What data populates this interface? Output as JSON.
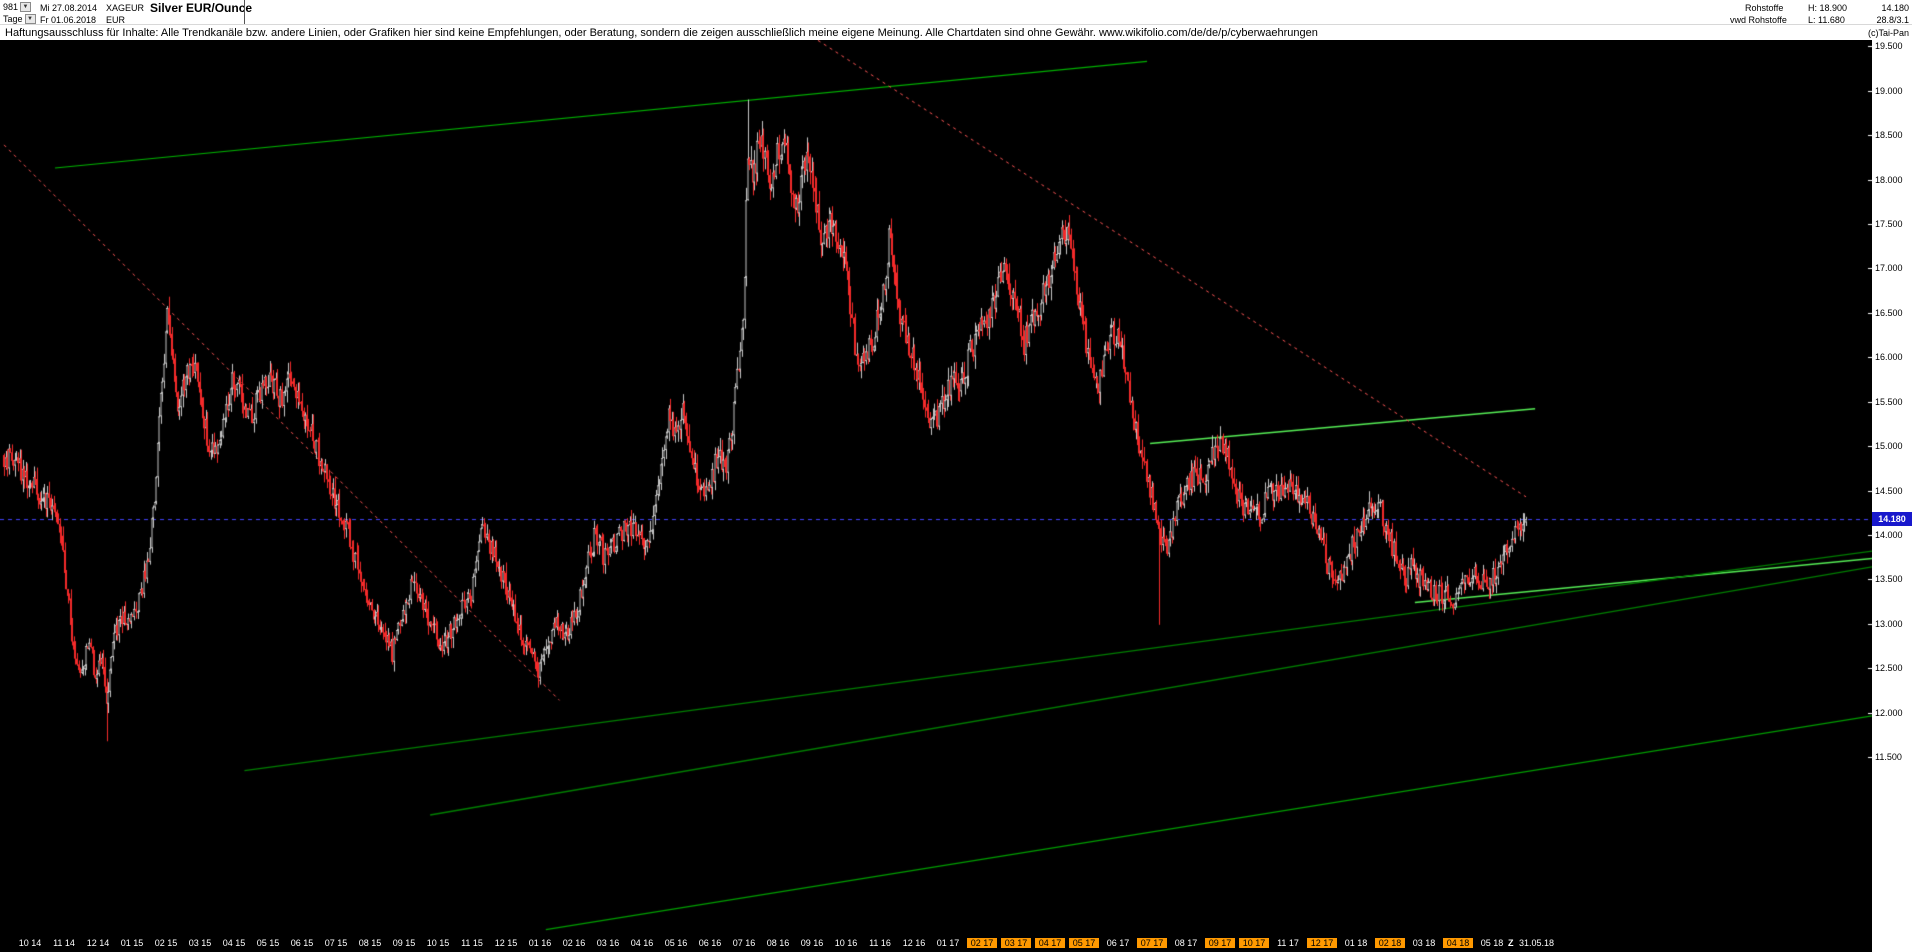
{
  "header": {
    "bar_count": "981",
    "anchor_date": "Mi 27.08.2014",
    "symbol": "XAGEUR",
    "title": "Silver EUR/Ounce",
    "timeframe": "Tage",
    "end_date": "Fr 01.06.2018",
    "currency": "EUR",
    "category": "Rohstoffe",
    "feed": "vwd Rohstoffe",
    "high_label": "H: 18.900",
    "low_label": "L: 11.680",
    "last_price": "14.180",
    "range_info": "28.8/3.1",
    "copyright": "(c)Tai-Pan"
  },
  "disclaimer": "Haftungsausschluss für Inhalte: Alle Trendkanäle bzw. andere Linien, oder Grafiken hier sind keine Empfehlungen, oder Beratung, sondern die zeigen ausschließlich meine eigene Meinung. Alle Chartdaten sind ohne Gewähr.  www.wikifolio.com/de/de/p/cyberwaehrungen",
  "chart_data": {
    "type": "candlestick",
    "title": "Silver EUR/Ounce",
    "instrument": "XAGEUR",
    "timeframe": "Tage",
    "period_start": "27.08.2014",
    "period_end": "01.06.2018",
    "bars": 981,
    "high": 18.9,
    "low": 11.68,
    "last": 14.18,
    "ylim": [
      9.5,
      19.57
    ],
    "yticks": [
      19.5,
      19.0,
      18.5,
      18.0,
      17.5,
      17.0,
      16.5,
      16.0,
      15.5,
      15.0,
      14.5,
      14.0,
      13.5,
      13.0,
      12.5,
      12.0,
      11.5
    ],
    "ytick_labels": [
      "19.500",
      "19.000",
      "18.500",
      "18.000",
      "17.500",
      "17.000",
      "16.500",
      "16.000",
      "15.500",
      "15.000",
      "14.500",
      "14.000",
      "13.500",
      "13.000",
      "12.500",
      "12.000",
      "11.500"
    ],
    "x_labels": [
      {
        "t": "10 14",
        "h": false
      },
      {
        "t": "11 14",
        "h": false
      },
      {
        "t": "12 14",
        "h": false
      },
      {
        "t": "01 15",
        "h": false
      },
      {
        "t": "02 15",
        "h": false
      },
      {
        "t": "03 15",
        "h": false
      },
      {
        "t": "04 15",
        "h": false
      },
      {
        "t": "05 15",
        "h": false
      },
      {
        "t": "06 15",
        "h": false
      },
      {
        "t": "07 15",
        "h": false
      },
      {
        "t": "08 15",
        "h": false
      },
      {
        "t": "09 15",
        "h": false
      },
      {
        "t": "10 15",
        "h": false
      },
      {
        "t": "11 15",
        "h": false
      },
      {
        "t": "12 15",
        "h": false
      },
      {
        "t": "01 16",
        "h": false
      },
      {
        "t": "02 16",
        "h": false
      },
      {
        "t": "03 16",
        "h": false
      },
      {
        "t": "04 16",
        "h": false
      },
      {
        "t": "05 16",
        "h": false
      },
      {
        "t": "06 16",
        "h": false
      },
      {
        "t": "07 16",
        "h": false
      },
      {
        "t": "08 16",
        "h": false
      },
      {
        "t": "09 16",
        "h": false
      },
      {
        "t": "10 16",
        "h": false
      },
      {
        "t": "11 16",
        "h": false
      },
      {
        "t": "12 16",
        "h": false
      },
      {
        "t": "01 17",
        "h": false
      },
      {
        "t": "02 17",
        "h": true
      },
      {
        "t": "03 17",
        "h": true
      },
      {
        "t": "04 17",
        "h": true
      },
      {
        "t": "05 17",
        "h": true
      },
      {
        "t": "06 17",
        "h": false
      },
      {
        "t": "07 17",
        "h": true
      },
      {
        "t": "08 17",
        "h": false
      },
      {
        "t": "09 17",
        "h": true
      },
      {
        "t": "10 17",
        "h": true
      },
      {
        "t": "11 17",
        "h": false
      },
      {
        "t": "12 17",
        "h": true
      },
      {
        "t": "01 18",
        "h": false
      },
      {
        "t": "02 18",
        "h": true
      },
      {
        "t": "03 18",
        "h": false
      },
      {
        "t": "04 18",
        "h": true
      },
      {
        "t": "05 18",
        "h": false
      }
    ],
    "end_marker": "Z",
    "end_date_label": "31.05.18",
    "last_price_line": {
      "price": 14.18,
      "color": "#4444ff",
      "label": "14.180",
      "bg": "#1818cc"
    },
    "trendlines": [
      {
        "t1": 0.0335,
        "p1": 18.13,
        "t2": 0.751,
        "p2": 19.33,
        "color": "#00b300",
        "dash": false,
        "w": 1.2
      },
      {
        "t1": 0.753,
        "p1": 15.03,
        "t2": 1.006,
        "p2": 15.42,
        "color": "#55ee55",
        "dash": false,
        "w": 1.5
      },
      {
        "t1": 0.927,
        "p1": 13.24,
        "t2": 1.254,
        "p2": 13.78,
        "color": "#55ee55",
        "dash": false,
        "w": 1.5
      },
      {
        "t1": 0.158,
        "p1": 11.35,
        "t2": 1.254,
        "p2": 13.88,
        "color": "#008000",
        "dash": false,
        "w": 1.3
      },
      {
        "t1": 0.28,
        "p1": 10.85,
        "t2": 1.254,
        "p2": 13.72,
        "color": "#008000",
        "dash": false,
        "w": 1.3
      },
      {
        "t1": 0.356,
        "p1": 9.56,
        "t2": 1.254,
        "p2": 12.04,
        "color": "#00a000",
        "dash": false,
        "w": 1.3
      },
      {
        "t1": 0.0,
        "p1": 18.39,
        "t2": 0.365,
        "p2": 12.14,
        "color": "#ff5555",
        "dash": true,
        "w": 1
      },
      {
        "t1": 0.5,
        "p1": 19.95,
        "t2": 1.0,
        "p2": 14.43,
        "color": "#ff5555",
        "dash": true,
        "w": 1
      }
    ],
    "spikes": [
      {
        "t": 0.0677,
        "low": 11.68
      },
      {
        "t": 0.4888,
        "high": 18.9
      },
      {
        "t": 0.7595,
        "low": 12.99
      }
    ],
    "keypoints": [
      [
        0.0,
        14.9
      ],
      [
        0.0105,
        14.75
      ],
      [
        0.0237,
        14.45
      ],
      [
        0.0335,
        14.3
      ],
      [
        0.0381,
        13.9
      ],
      [
        0.0434,
        13.1
      ],
      [
        0.0486,
        12.35
      ],
      [
        0.0552,
        12.75
      ],
      [
        0.0604,
        12.45
      ],
      [
        0.065,
        12.55
      ],
      [
        0.0677,
        12.05
      ],
      [
        0.071,
        12.75
      ],
      [
        0.0762,
        13.1
      ],
      [
        0.0828,
        12.95
      ],
      [
        0.0894,
        13.3
      ],
      [
        0.0946,
        13.7
      ],
      [
        0.0992,
        14.5
      ],
      [
        0.1032,
        15.6
      ],
      [
        0.1071,
        16.5
      ],
      [
        0.1104,
        16.1
      ],
      [
        0.1143,
        15.45
      ],
      [
        0.1196,
        15.75
      ],
      [
        0.1248,
        15.9
      ],
      [
        0.1301,
        15.45
      ],
      [
        0.1347,
        15.05
      ],
      [
        0.1387,
        14.95
      ],
      [
        0.1446,
        15.35
      ],
      [
        0.1505,
        15.8
      ],
      [
        0.1564,
        15.5
      ],
      [
        0.163,
        15.35
      ],
      [
        0.1695,
        15.7
      ],
      [
        0.1748,
        15.8
      ],
      [
        0.1814,
        15.5
      ],
      [
        0.1879,
        15.8
      ],
      [
        0.1932,
        15.6
      ],
      [
        0.1985,
        15.35
      ],
      [
        0.205,
        15.0
      ],
      [
        0.2116,
        14.65
      ],
      [
        0.2182,
        14.35
      ],
      [
        0.2247,
        14.15
      ],
      [
        0.2313,
        13.7
      ],
      [
        0.2366,
        13.35
      ],
      [
        0.2418,
        13.15
      ],
      [
        0.2484,
        12.9
      ],
      [
        0.255,
        12.68
      ],
      [
        0.2615,
        13.1
      ],
      [
        0.2681,
        13.45
      ],
      [
        0.2747,
        13.2
      ],
      [
        0.2813,
        13.0
      ],
      [
        0.2878,
        12.72
      ],
      [
        0.2944,
        12.95
      ],
      [
        0.3009,
        13.15
      ],
      [
        0.3075,
        13.35
      ],
      [
        0.3128,
        14.1
      ],
      [
        0.3193,
        13.9
      ],
      [
        0.3259,
        13.6
      ],
      [
        0.3325,
        13.25
      ],
      [
        0.3391,
        12.9
      ],
      [
        0.3456,
        12.7
      ],
      [
        0.3509,
        12.48
      ],
      [
        0.3574,
        12.85
      ],
      [
        0.364,
        13.0
      ],
      [
        0.3706,
        12.9
      ],
      [
        0.3771,
        13.2
      ],
      [
        0.3837,
        13.75
      ],
      [
        0.389,
        14.05
      ],
      [
        0.3942,
        13.75
      ],
      [
        0.4008,
        13.9
      ],
      [
        0.4074,
        14.05
      ],
      [
        0.4139,
        14.1
      ],
      [
        0.4205,
        13.9
      ],
      [
        0.4271,
        14.15
      ],
      [
        0.4323,
        14.9
      ],
      [
        0.4363,
        15.35
      ],
      [
        0.4415,
        15.2
      ],
      [
        0.4455,
        15.38
      ],
      [
        0.4507,
        14.95
      ],
      [
        0.4573,
        14.5
      ],
      [
        0.4639,
        14.55
      ],
      [
        0.4691,
        14.9
      ],
      [
        0.4744,
        14.75
      ],
      [
        0.4783,
        15.15
      ],
      [
        0.4823,
        15.95
      ],
      [
        0.4862,
        16.55
      ],
      [
        0.4888,
        18.35
      ],
      [
        0.4928,
        18.05
      ],
      [
        0.4967,
        18.5
      ],
      [
        0.5007,
        18.15
      ],
      [
        0.5046,
        17.95
      ],
      [
        0.5085,
        18.3
      ],
      [
        0.5132,
        18.55
      ],
      [
        0.5171,
        18.0
      ],
      [
        0.521,
        17.65
      ],
      [
        0.525,
        18.1
      ],
      [
        0.5289,
        18.3
      ],
      [
        0.5335,
        17.75
      ],
      [
        0.5375,
        17.25
      ],
      [
        0.5427,
        17.5
      ],
      [
        0.548,
        17.3
      ],
      [
        0.5533,
        17.05
      ],
      [
        0.5572,
        16.35
      ],
      [
        0.5611,
        15.9
      ],
      [
        0.5664,
        16.05
      ],
      [
        0.5717,
        16.25
      ],
      [
        0.5756,
        16.55
      ],
      [
        0.5795,
        16.95
      ],
      [
        0.5822,
        17.4
      ],
      [
        0.5861,
        16.75
      ],
      [
        0.5901,
        16.35
      ],
      [
        0.594,
        16.15
      ],
      [
        0.598,
        15.95
      ],
      [
        0.6032,
        15.55
      ],
      [
        0.6085,
        15.25
      ],
      [
        0.6137,
        15.35
      ],
      [
        0.619,
        15.55
      ],
      [
        0.6242,
        15.8
      ],
      [
        0.6295,
        15.7
      ],
      [
        0.6347,
        16.05
      ],
      [
        0.64,
        16.25
      ],
      [
        0.6452,
        16.4
      ],
      [
        0.6505,
        16.65
      ],
      [
        0.6544,
        16.95
      ],
      [
        0.6584,
        17.05
      ],
      [
        0.6623,
        16.7
      ],
      [
        0.6663,
        16.5
      ],
      [
        0.6702,
        16.15
      ],
      [
        0.6754,
        16.4
      ],
      [
        0.6807,
        16.6
      ],
      [
        0.686,
        16.85
      ],
      [
        0.6912,
        17.1
      ],
      [
        0.6958,
        17.45
      ],
      [
        0.6998,
        17.35
      ],
      [
        0.7037,
        17.0
      ],
      [
        0.7076,
        16.5
      ],
      [
        0.7116,
        16.1
      ],
      [
        0.7155,
        15.8
      ],
      [
        0.7195,
        15.7
      ],
      [
        0.7234,
        16.0
      ],
      [
        0.728,
        16.3
      ],
      [
        0.732,
        16.2
      ],
      [
        0.7366,
        15.85
      ],
      [
        0.7405,
        15.5
      ],
      [
        0.7444,
        15.1
      ],
      [
        0.7484,
        14.85
      ],
      [
        0.7523,
        14.55
      ],
      [
        0.7563,
        14.3
      ],
      [
        0.7595,
        13.95
      ],
      [
        0.7635,
        13.85
      ],
      [
        0.7674,
        14.1
      ],
      [
        0.7727,
        14.4
      ],
      [
        0.7779,
        14.55
      ],
      [
        0.7832,
        14.7
      ],
      [
        0.7884,
        14.65
      ],
      [
        0.7937,
        14.9
      ],
      [
        0.799,
        15.1
      ],
      [
        0.8042,
        14.9
      ],
      [
        0.8095,
        14.5
      ],
      [
        0.8147,
        14.3
      ],
      [
        0.82,
        14.4
      ],
      [
        0.8252,
        14.2
      ],
      [
        0.8305,
        14.5
      ],
      [
        0.8357,
        14.45
      ],
      [
        0.841,
        14.55
      ],
      [
        0.8463,
        14.5
      ],
      [
        0.8515,
        14.4
      ],
      [
        0.8568,
        14.3
      ],
      [
        0.8607,
        14.15
      ],
      [
        0.8647,
        13.95
      ],
      [
        0.8699,
        13.65
      ],
      [
        0.8752,
        13.45
      ],
      [
        0.8804,
        13.6
      ],
      [
        0.8844,
        13.8
      ],
      [
        0.8883,
        14.0
      ],
      [
        0.8936,
        14.2
      ],
      [
        0.8988,
        14.4
      ],
      [
        0.9041,
        14.3
      ],
      [
        0.908,
        14.1
      ],
      [
        0.912,
        13.9
      ],
      [
        0.9172,
        13.6
      ],
      [
        0.9212,
        13.5
      ],
      [
        0.9251,
        13.65
      ],
      [
        0.9304,
        13.5
      ],
      [
        0.9356,
        13.4
      ],
      [
        0.9409,
        13.3
      ],
      [
        0.9461,
        13.35
      ],
      [
        0.9514,
        13.28
      ],
      [
        0.9566,
        13.35
      ],
      [
        0.9619,
        13.5
      ],
      [
        0.9672,
        13.55
      ],
      [
        0.9724,
        13.45
      ],
      [
        0.9777,
        13.5
      ],
      [
        0.9829,
        13.7
      ],
      [
        0.9882,
        13.9
      ],
      [
        0.9934,
        14.05
      ],
      [
        1.0,
        14.18
      ]
    ],
    "colors": {
      "bg": "#000000",
      "up": "#c6c6c6",
      "up_fill": "#000000",
      "down": "#f52a2a",
      "axis_text": "#ffffff",
      "highlight": "#ff9900"
    }
  }
}
